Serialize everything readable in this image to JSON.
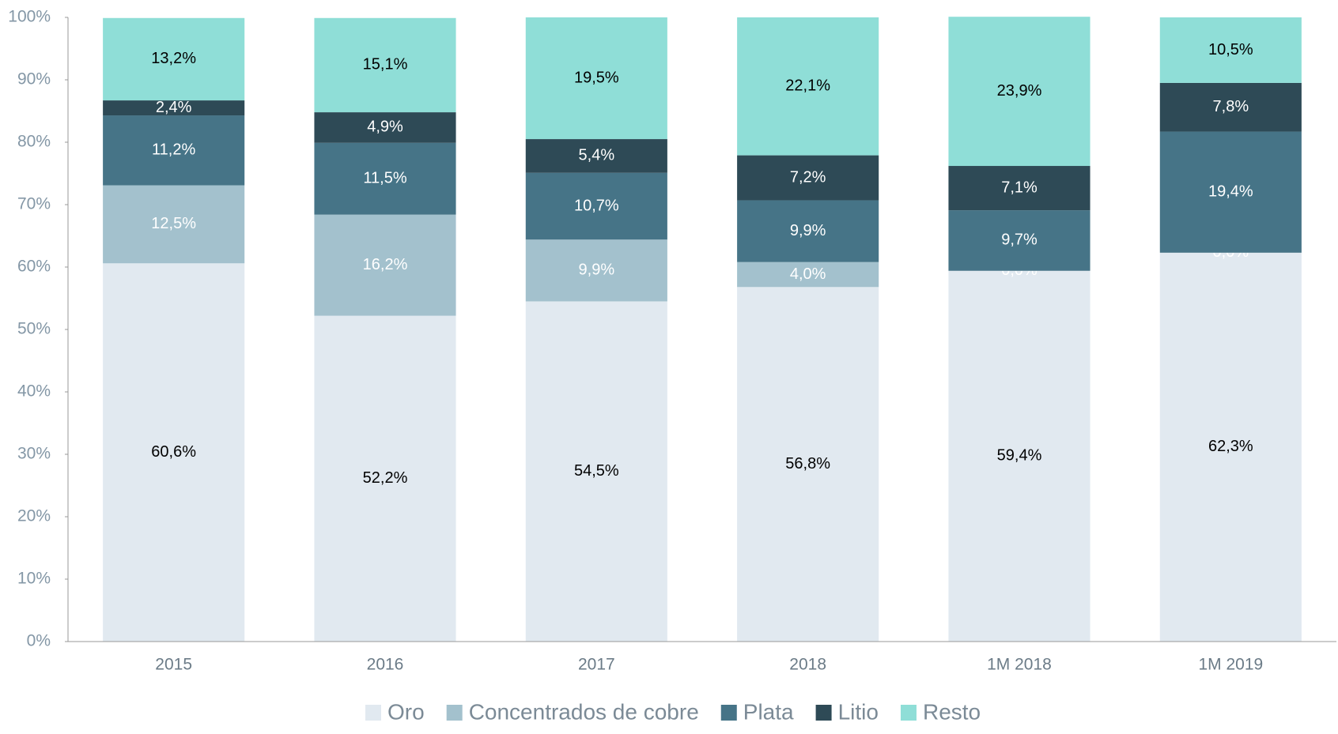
{
  "chart_data": {
    "type": "stacked_bar",
    "categories": [
      "2015",
      "2016",
      "2017",
      "2018",
      "1M 2018",
      "1M 2019"
    ],
    "series": [
      {
        "name": "Oro",
        "color": "#e1e9f0",
        "values": [
          60.6,
          52.2,
          54.5,
          56.8,
          59.4,
          62.3
        ],
        "value_labels": [
          "60,6%",
          "52,2%",
          "54,5%",
          "56,8%",
          "59,4%",
          "62,3%"
        ]
      },
      {
        "name": "Concentrados de cobre",
        "color": "#a3c1cd",
        "values": [
          12.5,
          16.2,
          9.9,
          4.0,
          0.0,
          0.0
        ],
        "value_labels": [
          "12,5%",
          "16,2%",
          "9,9%",
          "4,0%",
          "0,0%",
          "0,0%"
        ]
      },
      {
        "name": "Plata",
        "color": "#467487",
        "values": [
          11.2,
          11.5,
          10.7,
          9.9,
          9.7,
          19.4
        ],
        "value_labels": [
          "11,2%",
          "11,5%",
          "10,7%",
          "9,9%",
          "9,7%",
          "19,4%"
        ]
      },
      {
        "name": "Litio",
        "color": "#2e4a56",
        "values": [
          2.4,
          4.9,
          5.4,
          7.2,
          7.1,
          7.8
        ],
        "value_labels": [
          "2,4%",
          "4,9%",
          "5,4%",
          "7,2%",
          "7,1%",
          "7,8%"
        ]
      },
      {
        "name": "Resto",
        "color": "#8fded7",
        "values": [
          13.2,
          15.1,
          19.5,
          22.1,
          23.9,
          10.5
        ],
        "value_labels": [
          "13,2%",
          "15,1%",
          "19,5%",
          "22,1%",
          "23,9%",
          "10,5%"
        ]
      }
    ],
    "ylim": [
      0,
      100
    ],
    "yticks": [
      {
        "value": 0,
        "label": "0%"
      },
      {
        "value": 10,
        "label": "10%"
      },
      {
        "value": 20,
        "label": "20%"
      },
      {
        "value": 30,
        "label": "30%"
      },
      {
        "value": 40,
        "label": "40%"
      },
      {
        "value": 50,
        "label": "50%"
      },
      {
        "value": 60,
        "label": "60%"
      },
      {
        "value": 70,
        "label": "70%"
      },
      {
        "value": 80,
        "label": "80%"
      },
      {
        "value": 90,
        "label": "90%"
      },
      {
        "value": 100,
        "label": "100%"
      }
    ],
    "legend": "bottom"
  }
}
